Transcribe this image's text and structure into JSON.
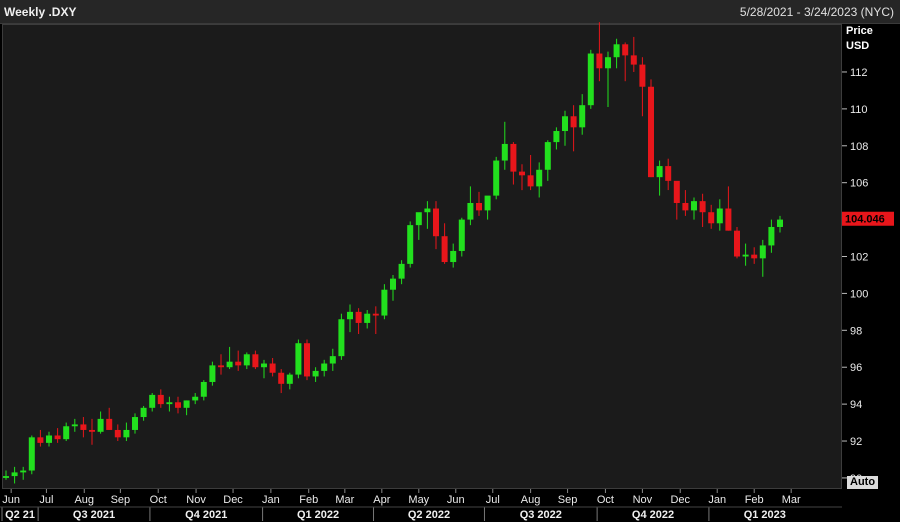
{
  "header": {
    "title": "Weekly .DXY",
    "date_range": "5/28/2021 - 3/24/2023 (NYC)"
  },
  "axis": {
    "unit_line1": "Price",
    "unit_line2": "USD",
    "auto_label": "Auto"
  },
  "colors": {
    "up": "#22e01e",
    "down": "#e8161b",
    "plot_bg": "#1b1b1b",
    "grid": "#2c2c2c",
    "last_price_bg": "#e8161b"
  },
  "chart_data": {
    "type": "candlestick",
    "interval": "weekly",
    "ylabel": "Price USD",
    "ylim": [
      89.4,
      114.6
    ],
    "y_ticks": [
      90,
      92,
      94,
      96,
      98,
      100,
      102,
      104,
      106,
      108,
      110,
      112
    ],
    "grid": false,
    "last_price": 104.046,
    "last_price_label": "104.046",
    "months": [
      "Jun",
      "Jul",
      "Aug",
      "Sep",
      "Oct",
      "Nov",
      "Dec",
      "Jan",
      "Feb",
      "Mar",
      "Apr",
      "May",
      "Jun",
      "Jul",
      "Aug",
      "Sep",
      "Oct",
      "Nov",
      "Dec",
      "Jan",
      "Feb",
      "Mar"
    ],
    "month_week_index": [
      0.6,
      4.7,
      9.1,
      13.3,
      17.7,
      22.1,
      26.4,
      30.8,
      35.2,
      39.4,
      43.7,
      48.0,
      52.3,
      56.6,
      61.0,
      65.3,
      69.7,
      74.0,
      78.4,
      82.7,
      87.0,
      91.3
    ],
    "quarters": [
      {
        "label": "Q2 21",
        "start": 0,
        "end": 4.2
      },
      {
        "label": "Q3 2021",
        "start": 4.2,
        "end": 17.2
      },
      {
        "label": "Q4 2021",
        "start": 17.2,
        "end": 30.3
      },
      {
        "label": "Q1 2022",
        "start": 30.3,
        "end": 43.2
      },
      {
        "label": "Q2 2022",
        "start": 43.2,
        "end": 56.1
      },
      {
        "label": "Q3 2022",
        "start": 56.1,
        "end": 69.2
      },
      {
        "label": "Q4 2022",
        "start": 69.2,
        "end": 82.2
      },
      {
        "label": "Q1 2023",
        "start": 82.2,
        "end": 95.2
      }
    ],
    "ohlc": [
      [
        90.0,
        90.4,
        89.9,
        90.1
      ],
      [
        90.1,
        90.6,
        89.7,
        90.3
      ],
      [
        90.3,
        90.6,
        89.9,
        90.4
      ],
      [
        90.4,
        92.3,
        90.2,
        92.2
      ],
      [
        92.2,
        92.6,
        91.7,
        91.9
      ],
      [
        91.9,
        92.5,
        91.7,
        92.3
      ],
      [
        92.3,
        92.7,
        91.9,
        92.1
      ],
      [
        92.1,
        93.0,
        92.0,
        92.8
      ],
      [
        92.8,
        93.2,
        92.5,
        92.9
      ],
      [
        92.9,
        93.3,
        92.2,
        92.6
      ],
      [
        92.6,
        93.2,
        91.8,
        92.5
      ],
      [
        92.5,
        93.6,
        92.4,
        93.2
      ],
      [
        93.2,
        93.8,
        92.6,
        92.6
      ],
      [
        92.6,
        92.9,
        92.0,
        92.2
      ],
      [
        92.2,
        93.0,
        92.0,
        92.6
      ],
      [
        92.6,
        93.5,
        92.4,
        93.3
      ],
      [
        93.3,
        93.9,
        93.1,
        93.8
      ],
      [
        93.8,
        94.6,
        93.6,
        94.5
      ],
      [
        94.5,
        94.8,
        93.8,
        94.0
      ],
      [
        94.0,
        94.4,
        93.6,
        94.1
      ],
      [
        94.1,
        94.4,
        93.5,
        93.8
      ],
      [
        93.8,
        94.2,
        93.4,
        94.2
      ],
      [
        94.2,
        94.6,
        94.0,
        94.4
      ],
      [
        94.4,
        95.3,
        94.2,
        95.2
      ],
      [
        95.2,
        96.3,
        95.0,
        96.1
      ],
      [
        96.1,
        96.7,
        95.6,
        96.0
      ],
      [
        96.0,
        97.1,
        95.9,
        96.3
      ],
      [
        96.3,
        96.9,
        95.8,
        96.1
      ],
      [
        96.1,
        96.8,
        95.9,
        96.7
      ],
      [
        96.7,
        96.9,
        95.9,
        96.0
      ],
      [
        96.0,
        96.4,
        95.4,
        96.2
      ],
      [
        96.2,
        96.5,
        95.5,
        95.7
      ],
      [
        95.7,
        95.9,
        94.6,
        95.1
      ],
      [
        95.1,
        95.7,
        94.8,
        95.6
      ],
      [
        95.6,
        97.5,
        95.4,
        97.3
      ],
      [
        97.3,
        97.5,
        95.3,
        95.5
      ],
      [
        95.5,
        96.0,
        95.2,
        95.8
      ],
      [
        95.8,
        96.4,
        95.5,
        96.2
      ],
      [
        96.2,
        97.0,
        95.8,
        96.6
      ],
      [
        96.6,
        98.9,
        96.4,
        98.6
      ],
      [
        98.6,
        99.4,
        97.9,
        99.0
      ],
      [
        99.0,
        99.2,
        97.8,
        98.4
      ],
      [
        98.4,
        99.1,
        98.1,
        98.9
      ],
      [
        98.9,
        99.3,
        97.8,
        98.8
      ],
      [
        98.8,
        100.5,
        98.6,
        100.2
      ],
      [
        100.2,
        101.0,
        99.6,
        100.8
      ],
      [
        100.8,
        101.8,
        100.5,
        101.6
      ],
      [
        101.6,
        103.9,
        101.4,
        103.7
      ],
      [
        103.7,
        104.2,
        102.9,
        104.4
      ],
      [
        104.4,
        105.0,
        103.5,
        104.6
      ],
      [
        104.6,
        105.0,
        102.4,
        103.1
      ],
      [
        103.1,
        103.8,
        101.6,
        101.7
      ],
      [
        101.7,
        102.7,
        101.4,
        102.3
      ],
      [
        102.3,
        104.1,
        102.0,
        104.0
      ],
      [
        104.0,
        105.8,
        103.7,
        104.9
      ],
      [
        104.9,
        105.5,
        104.2,
        104.5
      ],
      [
        104.5,
        105.1,
        104.0,
        105.3
      ],
      [
        105.3,
        107.4,
        105.1,
        107.2
      ],
      [
        107.2,
        109.3,
        106.7,
        108.1
      ],
      [
        108.1,
        108.2,
        105.9,
        106.6
      ],
      [
        106.6,
        107.0,
        105.6,
        106.4
      ],
      [
        106.4,
        107.5,
        105.6,
        105.8
      ],
      [
        105.8,
        107.1,
        105.2,
        106.7
      ],
      [
        106.7,
        108.3,
        106.1,
        108.2
      ],
      [
        108.2,
        109.0,
        107.8,
        108.8
      ],
      [
        108.8,
        109.9,
        108.0,
        109.6
      ],
      [
        109.6,
        110.2,
        107.7,
        109.0
      ],
      [
        109.0,
        110.8,
        108.6,
        110.2
      ],
      [
        110.2,
        113.2,
        110.0,
        113.0
      ],
      [
        113.0,
        114.7,
        111.5,
        112.2
      ],
      [
        112.2,
        113.1,
        110.1,
        112.8
      ],
      [
        112.8,
        113.8,
        112.2,
        113.5
      ],
      [
        113.5,
        113.6,
        111.5,
        112.9
      ],
      [
        112.9,
        113.9,
        112.0,
        112.4
      ],
      [
        112.4,
        112.8,
        109.6,
        111.2
      ],
      [
        111.2,
        111.6,
        106.3,
        106.3
      ],
      [
        106.3,
        107.2,
        105.3,
        106.9
      ],
      [
        106.9,
        107.3,
        105.6,
        106.1
      ],
      [
        106.1,
        105.9,
        104.0,
        104.9
      ],
      [
        104.9,
        105.6,
        104.2,
        104.5
      ],
      [
        104.5,
        105.2,
        104.0,
        105.0
      ],
      [
        105.0,
        105.4,
        103.6,
        104.4
      ],
      [
        104.4,
        104.8,
        103.5,
        103.8
      ],
      [
        103.8,
        105.1,
        103.4,
        104.6
      ],
      [
        104.6,
        105.8,
        103.4,
        103.4
      ],
      [
        103.4,
        103.6,
        101.9,
        102.0
      ],
      [
        102.0,
        102.7,
        101.5,
        102.1
      ],
      [
        102.1,
        102.5,
        101.6,
        101.9
      ],
      [
        101.9,
        102.9,
        100.9,
        102.6
      ],
      [
        102.6,
        104.0,
        102.2,
        103.6
      ],
      [
        103.6,
        104.2,
        103.3,
        104.0
      ]
    ]
  }
}
